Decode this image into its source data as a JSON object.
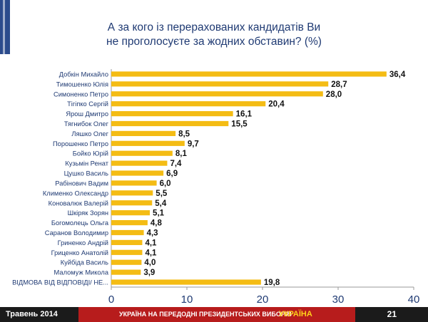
{
  "title": {
    "line1": "А за кого із перерахованих кандидатів Ви",
    "line2": "не проголосуєте за жодних обставин? (%)"
  },
  "colors": {
    "bar": "#f4bc14",
    "title": "#1f3a73",
    "footer_red": "#b71c1c",
    "footer_dark": "#1b1b1b",
    "footer_highlight": "#ffd21a"
  },
  "chart_data": {
    "type": "bar",
    "orientation": "horizontal",
    "title": "А за кого із перерахованих кандидатів Ви не проголосуєте за жодних обставин? (%)",
    "xlim": [
      0,
      40
    ],
    "xticks": [
      "0",
      "10",
      "20",
      "30",
      "40"
    ],
    "categories": [
      "Добкін Михайло",
      "Тимошенко Юлія",
      "Симоненко Петро",
      "Тігіпко Сергій",
      "Ярош Дмитро",
      "Тягнибок Олег",
      "Ляшко Олег",
      "Порошенко Петро",
      "Бойко Юрій",
      "Кузьмін Ренат",
      "Цушко Василь",
      "Рабінович Вадим",
      "Клименко Олександр",
      "Коновалюк Валерій",
      "Шкіряк Зорян",
      "Богомолець Ольга",
      "Саранов Володимир",
      "Гриненко Андрій",
      "Гриценко Анатолій",
      "Куйбіда Василь",
      "Маломуж Микола",
      "ВІДМОВА ВІД ВІДПОВІДІ/ НЕ..."
    ],
    "values": [
      36.4,
      28.7,
      28.0,
      20.4,
      16.1,
      15.5,
      8.5,
      9.7,
      8.1,
      7.4,
      6.9,
      6.0,
      5.5,
      5.4,
      5.1,
      4.8,
      4.3,
      4.1,
      4.1,
      4.0,
      3.9,
      19.8
    ],
    "labels": [
      "36,4",
      "28,7",
      "28,0",
      "20,4",
      "16,1",
      "15,5",
      "8,5",
      "9,7",
      "8,1",
      "7,4",
      "6,9",
      "6,0",
      "5,5",
      "5,4",
      "5,1",
      "4,8",
      "4,3",
      "4,1",
      "4,1",
      "4,0",
      "3,9",
      "19,8"
    ]
  },
  "footer": {
    "date": "Травень 2014",
    "caption": "УКРАЇНА НА ПЕРЕДОДНІ ПРЕЗИДЕНТСЬКИХ ВИБОРІВ",
    "highlight": "УКРАЇНА",
    "page": "21"
  }
}
